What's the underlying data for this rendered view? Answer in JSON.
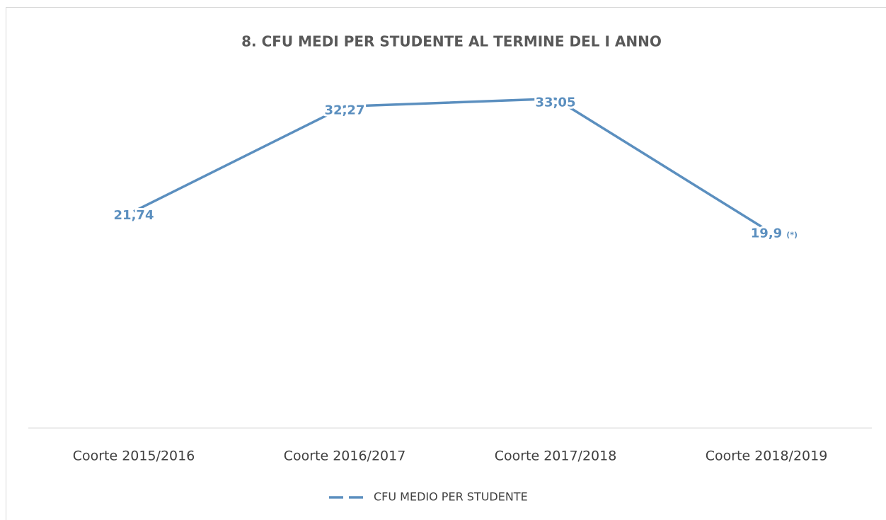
{
  "chart_data": {
    "type": "line",
    "title": "8. CFU MEDI PER STUDENTE AL TERMINE DEL I ANNO",
    "categories": [
      "Coorte 2015/2016",
      "Coorte 2016/2017",
      "Coorte 2017/2018",
      "Coorte 2018/2019"
    ],
    "series": [
      {
        "name": "CFU MEDIO PER STUDENTE",
        "color": "#5b8fbf",
        "values": [
          21.74,
          32.27,
          33.05,
          19.9
        ],
        "value_labels": [
          "21,74",
          "32,27",
          "33,05",
          "19,9"
        ]
      }
    ],
    "annotation": "(*)",
    "ylim": [
      0,
      35
    ]
  }
}
